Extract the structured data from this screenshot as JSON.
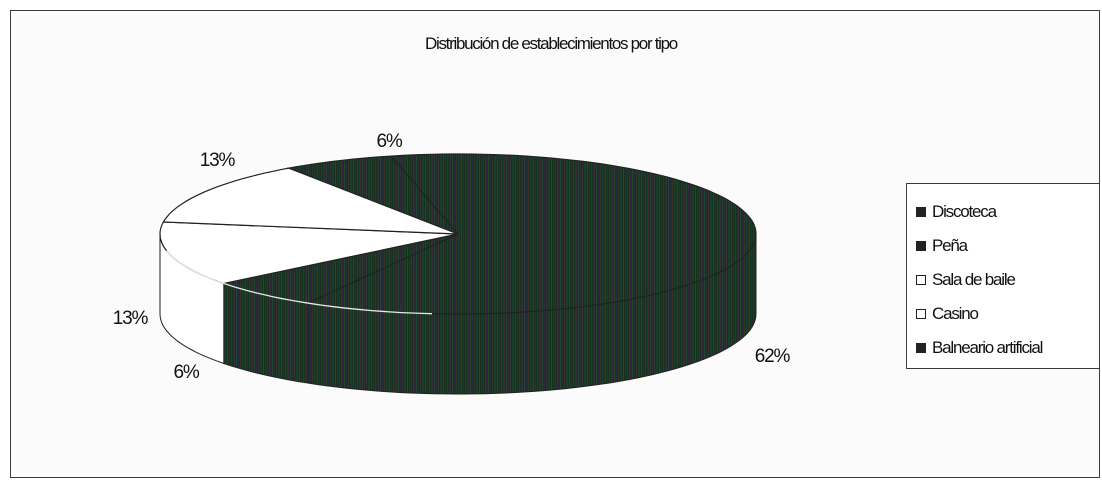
{
  "chart_data": {
    "type": "pie",
    "title": "Distribución de establecimientos por tipo",
    "style": "3d-pie",
    "categories": [
      "Discoteca",
      "Peña",
      "Sala de baile",
      "Casino",
      "Balneario artificial"
    ],
    "values": [
      62,
      6,
      13,
      13,
      6
    ],
    "value_labels": [
      "62%",
      "6%",
      "13%",
      "13%",
      "6%"
    ],
    "colors": [
      "#163222",
      "#1c2f26",
      "#ffffff",
      "#ffffff",
      "#203427"
    ],
    "legend_position": "right"
  }
}
